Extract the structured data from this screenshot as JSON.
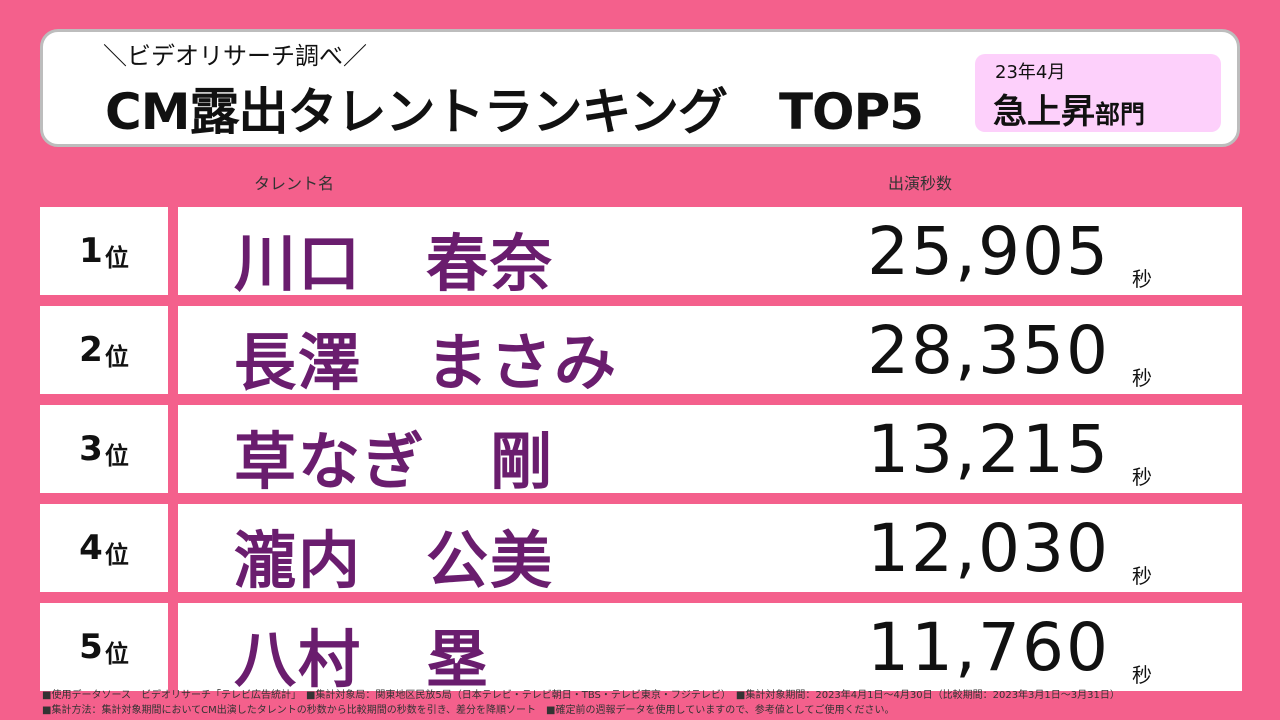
{
  "header": {
    "subtitle": "＼ビデオリサーチ調べ／",
    "title_part1": "CM露出タレントランキング",
    "title_part2": "TOP5",
    "badge_date": "23年4月",
    "badge_main": "急上昇",
    "badge_suffix": "部門"
  },
  "columns": {
    "talent": "タレント名",
    "seconds": "出演秒数"
  },
  "rows": [
    {
      "rank": "1",
      "suffix": "位",
      "name": "川口　春奈",
      "seconds": "25,905",
      "unit": "秒"
    },
    {
      "rank": "2",
      "suffix": "位",
      "name": "長澤　まさみ",
      "seconds": "28,350",
      "unit": "秒"
    },
    {
      "rank": "3",
      "suffix": "位",
      "name": "草なぎ　剛",
      "seconds": "13,215",
      "unit": "秒"
    },
    {
      "rank": "4",
      "suffix": "位",
      "name": "瀧内　公美",
      "seconds": "12,030",
      "unit": "秒"
    },
    {
      "rank": "5",
      "suffix": "位",
      "name": "八村　塁",
      "seconds": "11,760",
      "unit": "秒"
    }
  ],
  "footer": {
    "line1": "■使用データソース　ビデオリサーチ「テレビ広告統計」　■集計対象局：関東地区民放5局（日本テレビ・テレビ朝日・TBS・テレビ東京・フジテレビ）　■集計対象期間：2023年4月1日～4月30日（比較期間：2023年3月1日～3月31日）",
    "line2": "■集計方法：集計対象期間においてCM出演したタレントの秒数から比較期間の秒数を引き、差分を降順ソート　■確定前の週報データを使用していますので、参考値としてご使用ください。"
  },
  "colors": {
    "background": "#f4608c",
    "talent_name": "#6a1d6e",
    "badge": "#fdd0fb"
  }
}
